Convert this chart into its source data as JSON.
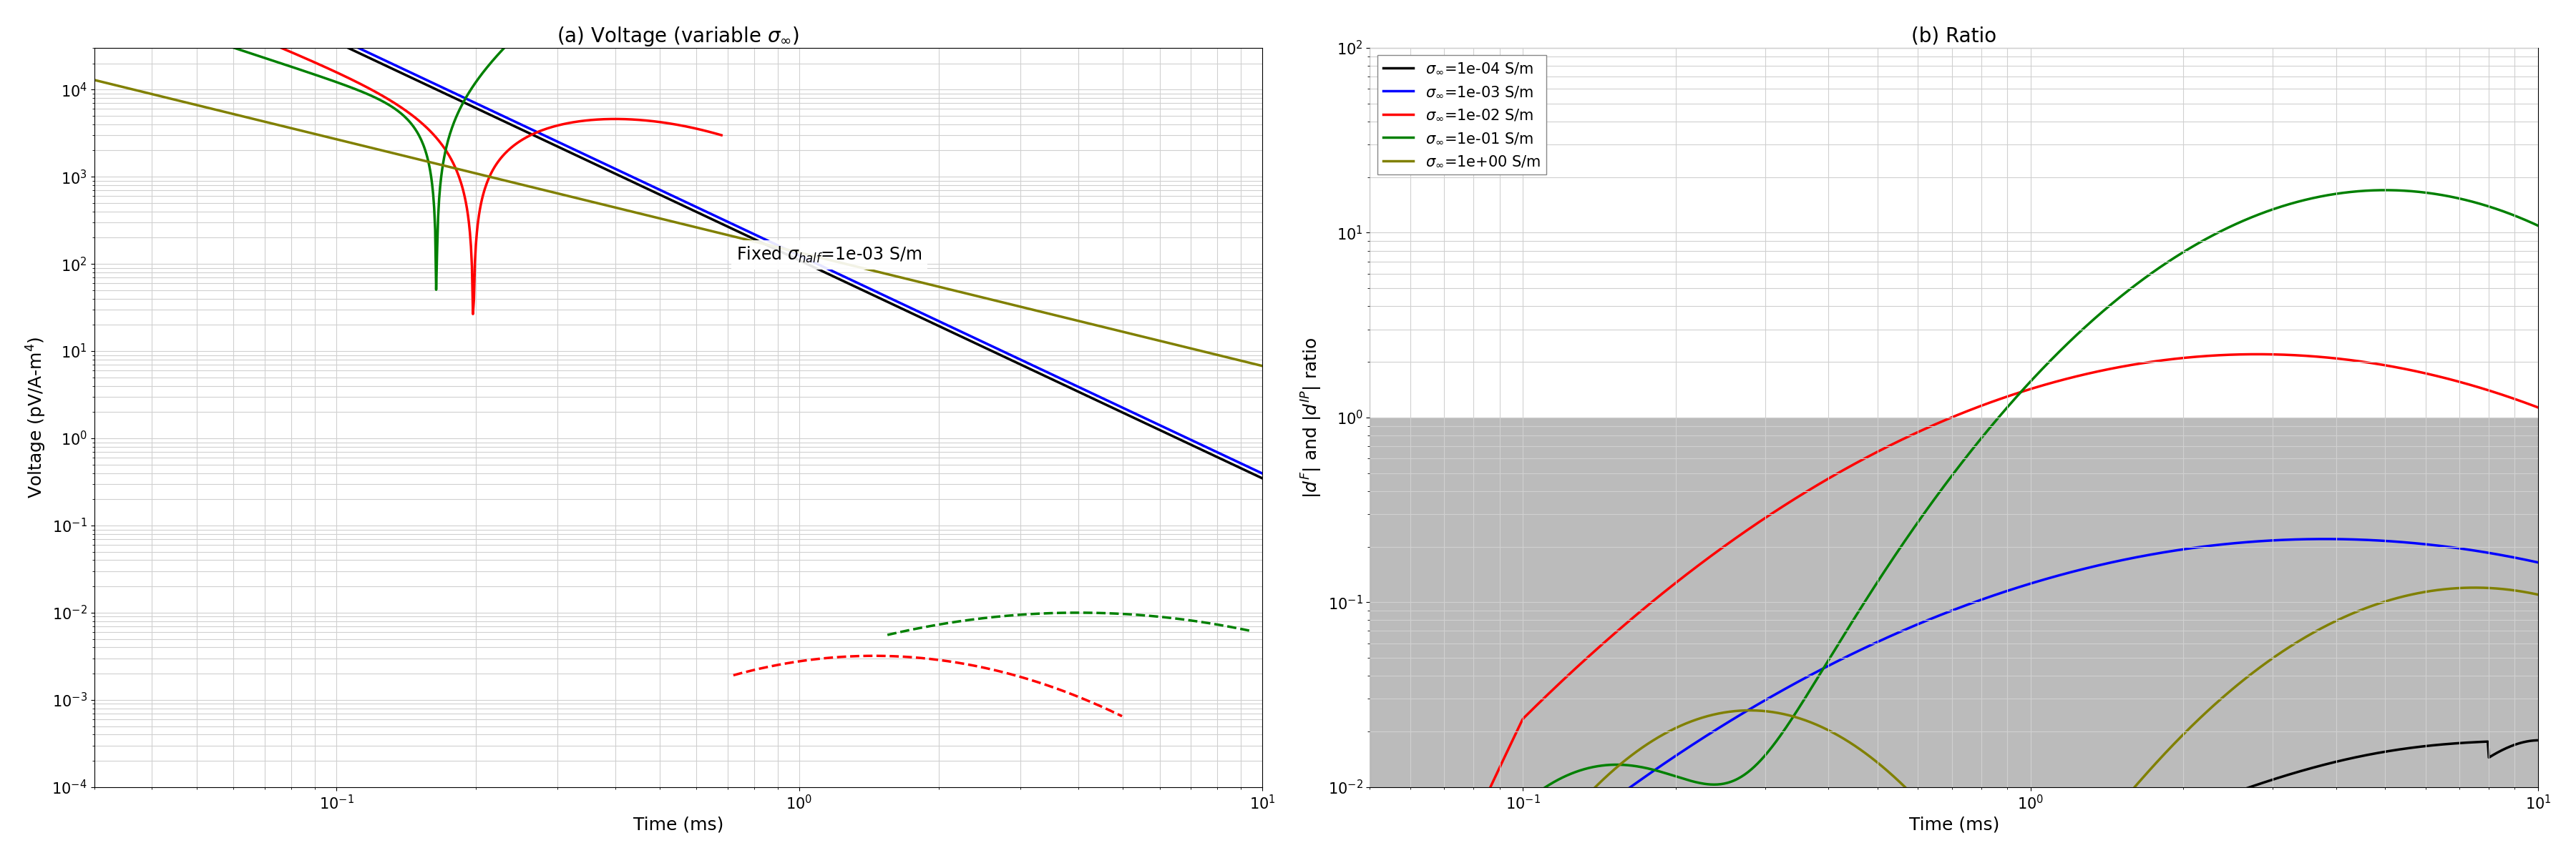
{
  "title_a": "(a) Voltage (variable $\\sigma_{\\infty}$)",
  "title_b": "(b) Ratio",
  "xlabel": "Time (ms)",
  "ylabel_a": "Voltage (pV/A-m$^4$)",
  "ylabel_b": "$|d^F|$ and $|d^{IP}|$ ratio",
  "annotation_a": "Fixed $\\sigma_{half}$=1e-03 S/m",
  "legend_labels": [
    "$\\sigma_{\\infty}$=1e-04 S/m",
    "$\\sigma_{\\infty}$=1e-03 S/m",
    "$\\sigma_{\\infty}$=1e-02 S/m",
    "$\\sigma_{\\infty}$=1e-01 S/m",
    "$\\sigma_{\\infty}$=1e+00 S/m"
  ],
  "colors": [
    "black",
    "blue",
    "red",
    "green",
    "olive"
  ],
  "xlim_a": [
    0.03,
    10
  ],
  "ylim_a": [
    0.0001,
    30000.0
  ],
  "xlim_b": [
    0.05,
    10
  ],
  "ylim_b": [
    0.01,
    100
  ],
  "gray_threshold": 1.0,
  "gray_color": "#bbbbbb",
  "lw": 2.5,
  "title_fontsize": 20,
  "label_fontsize": 18,
  "tick_fontsize": 15,
  "legend_fontsize": 15,
  "annot_fontsize": 17
}
